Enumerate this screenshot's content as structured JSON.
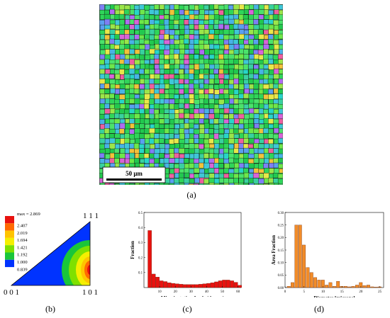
{
  "map": {
    "scale_label": "50 μm",
    "caption": "(a)"
  },
  "pole_figure": {
    "caption": "(b)",
    "corner_labels": {
      "top": "1 1 1",
      "left": "0 0 1",
      "right": "1 0 1"
    },
    "legend_max": "max = 2.869",
    "legend_levels": [
      {
        "label": "2.407",
        "color": "#e8120f"
      },
      {
        "label": "2.019",
        "color": "#ff6a00"
      },
      {
        "label": "1.694",
        "color": "#ffc400"
      },
      {
        "label": "1.421",
        "color": "#f5ef00"
      },
      {
        "label": "1.192",
        "color": "#7fe000"
      },
      {
        "label": "1.000",
        "color": "#19c63a"
      },
      {
        "label": "0.839",
        "color": "#0033ff"
      }
    ]
  },
  "chart_data": [
    {
      "type": "bar",
      "caption": "(c)",
      "xlabel": "Misorientation Angle (degree)",
      "ylabel": "Fraction",
      "xlim": [
        0,
        62
      ],
      "ylim": [
        0,
        0.5
      ],
      "xticks": [
        "10",
        "20",
        "30",
        "40",
        "50",
        "60"
      ],
      "yticks": [
        "0.1",
        "0.2",
        "0.3",
        "0.4",
        "0.5"
      ],
      "bar_width": 2.5,
      "x": [
        3.75,
        6.25,
        8.75,
        11.25,
        13.75,
        16.25,
        18.75,
        21.25,
        23.75,
        26.25,
        28.75,
        31.25,
        33.75,
        36.25,
        38.75,
        41.25,
        43.75,
        46.25,
        48.75,
        51.25,
        53.75,
        56.25,
        58.75,
        61.25
      ],
      "values": [
        0.38,
        0.09,
        0.07,
        0.045,
        0.04,
        0.032,
        0.028,
        0.025,
        0.022,
        0.02,
        0.02,
        0.02,
        0.02,
        0.022,
        0.025,
        0.028,
        0.032,
        0.038,
        0.045,
        0.05,
        0.05,
        0.045,
        0.035,
        0.015
      ],
      "color": "#e8120f"
    },
    {
      "type": "bar",
      "caption": "(d)",
      "xlabel": "Diameter [microns]",
      "ylabel": "Area Fraction",
      "xlim": [
        0,
        26
      ],
      "ylim": [
        0,
        0.3
      ],
      "xticks": [
        "0",
        "5",
        "10",
        "15",
        "20",
        "25"
      ],
      "yticks": [
        "0.00",
        "0.05",
        "0.10",
        "0.15",
        "0.20",
        "0.25",
        "0.30"
      ],
      "bar_width": 0.9,
      "x": [
        1,
        2,
        3,
        4,
        5,
        6,
        7,
        8,
        9,
        10,
        11,
        12,
        13,
        14,
        15,
        16,
        17,
        18,
        19,
        20,
        21,
        22,
        23,
        24,
        25
      ],
      "values": [
        0.005,
        0.02,
        0.25,
        0.25,
        0.17,
        0.08,
        0.06,
        0.04,
        0.03,
        0.03,
        0.01,
        0.02,
        0.005,
        0.025,
        0.005,
        0.005,
        0.003,
        0.005,
        0.01,
        0.02,
        0.008,
        0.01,
        0.003,
        0.002,
        0.003
      ],
      "color": "#f28c28"
    }
  ]
}
